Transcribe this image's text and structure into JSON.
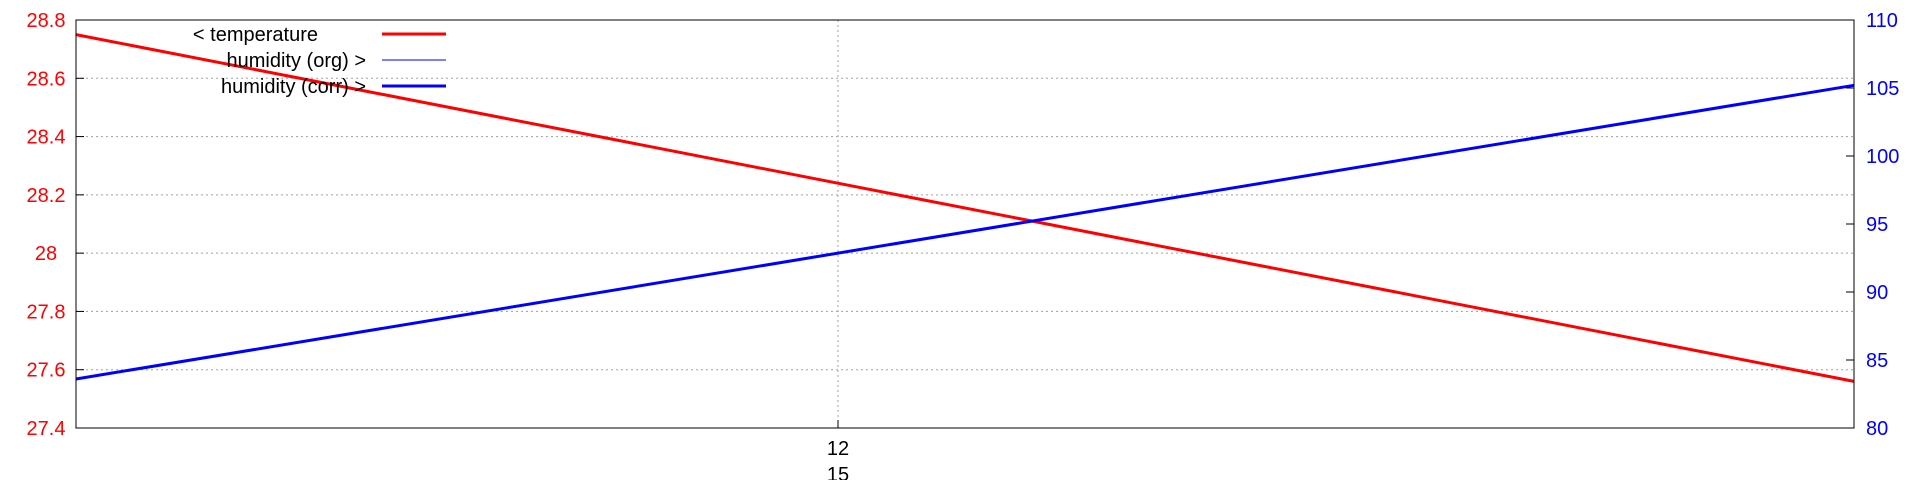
{
  "chart_data": {
    "type": "line",
    "x_tick_labels": [
      {
        "x": 12,
        "line1": "12",
        "line2": "15"
      }
    ],
    "x_range": [
      11.82,
      12.24
    ],
    "y_left": {
      "range": [
        27.4,
        28.8
      ],
      "ticks": [
        27.4,
        27.6,
        27.8,
        28.0,
        28.2,
        28.4,
        28.6,
        28.8
      ],
      "tick_labels": [
        "27.4",
        "27.6",
        "27.8",
        "28",
        "28.2",
        "28.4",
        "28.6",
        "28.8"
      ]
    },
    "y_right": {
      "range": [
        80,
        110
      ],
      "ticks": [
        80,
        85,
        90,
        95,
        100,
        105,
        110
      ],
      "tick_labels": [
        "80",
        "85",
        "90",
        "95",
        "100",
        "105",
        "110"
      ]
    },
    "grid": true,
    "legend_position": "top-left",
    "series": [
      {
        "name": "< temperature",
        "axis": "left",
        "color": "#ff0000",
        "line_width": 3,
        "x": [
          11.82,
          12.24
        ],
        "y": [
          28.75,
          27.56
        ]
      },
      {
        "name": "humidity (org) >",
        "axis": "right",
        "color": "#0000ff",
        "line_width": 1,
        "x": [
          11.82,
          12.24
        ],
        "y": [
          83.6,
          105.2
        ]
      },
      {
        "name": "humidity (corr) >",
        "axis": "right",
        "color": "#0000ff",
        "line_width": 3,
        "x": [
          11.82,
          12.24
        ],
        "y": [
          83.6,
          105.2
        ]
      }
    ]
  }
}
